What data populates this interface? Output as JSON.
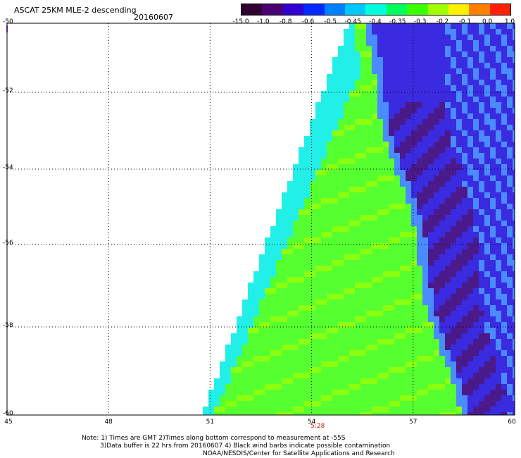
{
  "header": {
    "title": "ASCAT 25KM MLE-2 descending",
    "date": "20160607"
  },
  "colorbar": {
    "labels": [
      "-15.0",
      "-1.0",
      "-0.8",
      "-0.6",
      "-0.5",
      "-0.45",
      "-0.4",
      "-0.35",
      "-0.3",
      "-0.2",
      "-0.1",
      "0.0",
      "1.0"
    ],
    "colors": [
      "#300030",
      "#4a0070",
      "#3000d0",
      "#0028ff",
      "#0080ff",
      "#00c8ff",
      "#00ffdc",
      "#00ff5a",
      "#3cff00",
      "#a0ff00",
      "#fff000",
      "#ff8000",
      "#ff2000"
    ]
  },
  "map": {
    "lat_labels": [
      "-50",
      "-52",
      "-54",
      "-56",
      "-58",
      "-60"
    ],
    "lon_labels": [
      "45",
      "48",
      "51",
      "54",
      "57",
      "60"
    ],
    "time_label": "5:28",
    "colors": {
      "dark_purple": "#4b1a8a",
      "blue": "#3a2ae0",
      "light_blue": "#4a8cff",
      "cyan": "#22f0e8",
      "green": "#55ff30",
      "yellow_green": "#8cff10"
    }
  },
  "notes": {
    "line1": "Note: 1) Times are GMT 2)Times along bottom correspond to measurement at -55S",
    "line2": "3)Data buffer is 22 hrs from 20160607 4) Black wind barbs indicate possible contamination",
    "line3": "NOAA/NESDIS/Center for Satellite Applications and Research"
  }
}
